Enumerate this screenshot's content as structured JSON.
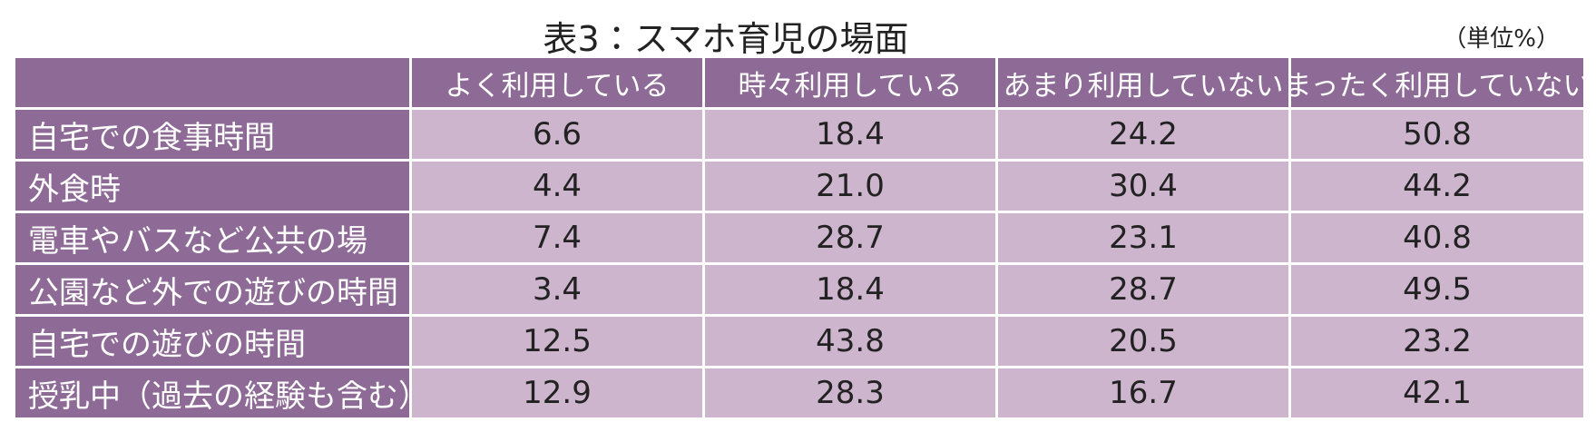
{
  "title": "表3：スマホ育児の場面",
  "unit": "（単位%）",
  "table": {
    "columns": [
      "よく利用している",
      "時々利用している",
      "あまり利用していない",
      "まったく利用していない"
    ],
    "rows": [
      {
        "label": "自宅での食事時間",
        "values": [
          "6.6",
          "18.4",
          "24.2",
          "50.8"
        ]
      },
      {
        "label": "外食時",
        "values": [
          "4.4",
          "21.0",
          "30.4",
          "44.2"
        ]
      },
      {
        "label": "電車やバスなど公共の場",
        "values": [
          "7.4",
          "28.7",
          "23.1",
          "40.8"
        ]
      },
      {
        "label": "公園など外での遊びの時間",
        "values": [
          "3.4",
          "18.4",
          "28.7",
          "49.5"
        ]
      },
      {
        "label": "自宅での遊びの時間",
        "values": [
          "12.5",
          "43.8",
          "20.5",
          "23.2"
        ]
      },
      {
        "label": "授乳中（過去の経験も含む）",
        "values": [
          "12.9",
          "28.3",
          "16.7",
          "42.1"
        ]
      }
    ]
  }
}
